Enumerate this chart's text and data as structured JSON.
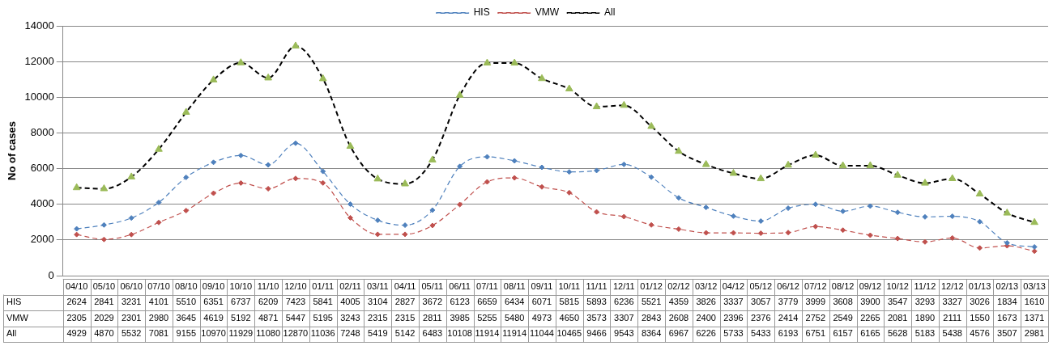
{
  "chart_data": {
    "type": "line",
    "ylabel": "No of cases",
    "categories": [
      "04/10",
      "05/10",
      "06/10",
      "07/10",
      "08/10",
      "09/10",
      "10/10",
      "11/10",
      "12/10",
      "01/11",
      "02/11",
      "03/11",
      "04/11",
      "05/11",
      "06/11",
      "07/11",
      "08/11",
      "09/11",
      "10/11",
      "11/11",
      "12/11",
      "01/12",
      "02/12",
      "03/12",
      "04/12",
      "05/12",
      "06/12",
      "07/12",
      "08/12",
      "09/12",
      "10/12",
      "11/12",
      "12/12",
      "01/13",
      "02/13",
      "03/13"
    ],
    "series": [
      {
        "name": "HIS",
        "color": "#4f81bd",
        "marker": "diamond",
        "line_style": "dashed",
        "values": [
          2624,
          2841,
          3231,
          4101,
          5510,
          6351,
          6737,
          6209,
          7423,
          5841,
          4005,
          3104,
          2827,
          3672,
          6123,
          6659,
          6434,
          6071,
          5815,
          5893,
          6236,
          5521,
          4359,
          3826,
          3337,
          3057,
          3779,
          3999,
          3608,
          3900,
          3547,
          3293,
          3327,
          3026,
          1834,
          1610
        ]
      },
      {
        "name": "VMW",
        "color": "#c0504d",
        "marker": "diamond",
        "line_style": "dashed",
        "values": [
          2305,
          2029,
          2301,
          2980,
          3645,
          4619,
          5192,
          4871,
          5447,
          5195,
          3243,
          2315,
          2315,
          2811,
          3985,
          5255,
          5480,
          4973,
          4650,
          3573,
          3307,
          2843,
          2608,
          2400,
          2396,
          2376,
          2414,
          2752,
          2549,
          2265,
          2081,
          1890,
          2111,
          1550,
          1673,
          1371
        ]
      },
      {
        "name": "All",
        "color": "#000000",
        "marker": "triangle",
        "line_style": "dashed",
        "values": [
          4929,
          4870,
          5532,
          7081,
          9155,
          10970,
          11929,
          11080,
          12870,
          11036,
          7248,
          5419,
          5142,
          6483,
          10108,
          11914,
          11914,
          11044,
          10465,
          9466,
          9543,
          8364,
          6967,
          6226,
          5733,
          5433,
          6193,
          6751,
          6157,
          6165,
          5628,
          5183,
          5438,
          4576,
          3507,
          2981
        ]
      }
    ],
    "ylim": [
      0,
      14000
    ],
    "yticks": [
      0,
      2000,
      4000,
      6000,
      8000,
      10000,
      12000,
      14000
    ],
    "grid": "y",
    "legend": "top",
    "data_labels": true
  }
}
